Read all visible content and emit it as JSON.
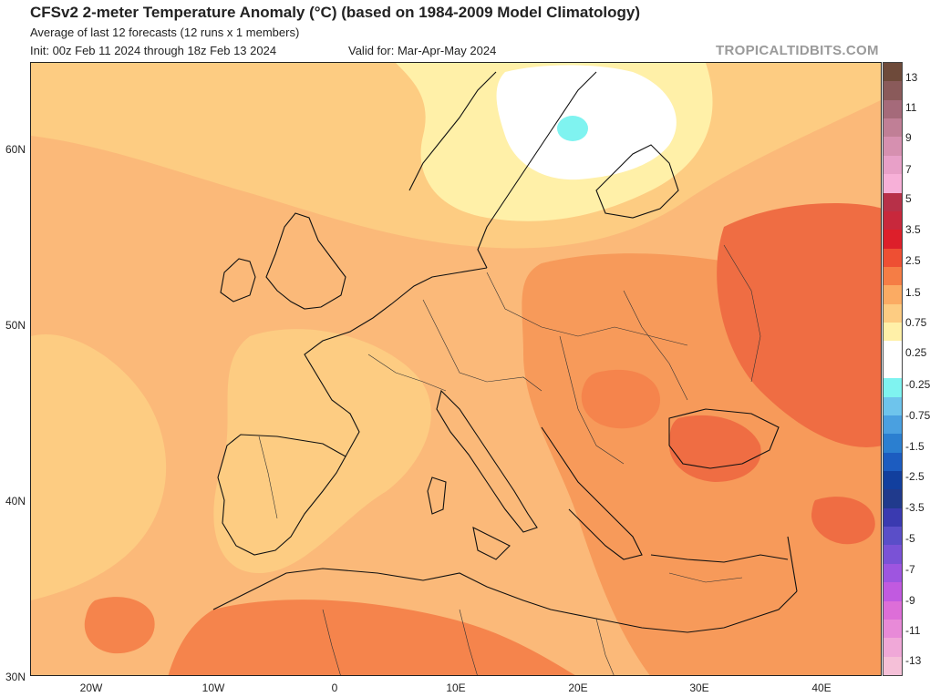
{
  "header": {
    "title": "CFSv2 2-meter Temperature Anomaly (°C) (based on 1984-2009 Model Climatology)",
    "subtitle": "Average of last 12 forecasts (12 runs x 1 members)",
    "init": "Init: 00z Feb 11 2024 through 18z Feb 13 2024",
    "valid": "Valid for: Mar-Apr-May 2024",
    "brand": "TROPICALTIDBITS.COM"
  },
  "axes": {
    "lat_labels": [
      "60N",
      "50N",
      "40N",
      "30N"
    ],
    "lon_labels": [
      "20W",
      "10W",
      "0",
      "10E",
      "20E",
      "30E",
      "40E"
    ],
    "lon_range": [
      -25,
      45
    ],
    "lat_range": [
      30,
      65
    ]
  },
  "colorbar": {
    "labels": [
      "13",
      "11",
      "9",
      "7",
      "5",
      "3.5",
      "2.5",
      "1.5",
      "0.75",
      "0.25",
      "-0.25",
      "-0.75",
      "-1.5",
      "-2.5",
      "-3.5",
      "-5",
      "-7",
      "-9",
      "-11",
      "-13"
    ],
    "colors": [
      "#6e4a3a",
      "#8a5a5a",
      "#a56a7a",
      "#c07f96",
      "#d690b0",
      "#e8a0c8",
      "#f7b0d8",
      "#b73048",
      "#c8283c",
      "#dd1f2a",
      "#ee4f33",
      "#f57d45",
      "#fbab63",
      "#fdcc82",
      "#fff0a8",
      "#ffffff",
      "#ffffff",
      "#7ff3f0",
      "#6ec4ec",
      "#4aa0e0",
      "#2b7fd0",
      "#1c5cc0",
      "#123f9e",
      "#203a8c",
      "#3a3ab0",
      "#5a4ec8",
      "#7a52d6",
      "#9e55e0",
      "#c15ae0",
      "#dd6ed8",
      "#e88ad8",
      "#f0a8d8",
      "#f5c0d8"
    ]
  }
}
